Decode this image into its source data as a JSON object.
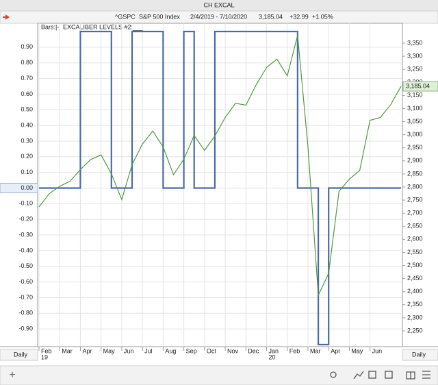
{
  "window": {
    "title": "CH EXCAL"
  },
  "header": {
    "symbol": "^GSPC",
    "name": "S&P 500 Index",
    "range": "2/4/2019 - 7/10/2020",
    "last": "3,185.04",
    "change": "+32.99",
    "change_pct": "+1.05%"
  },
  "footer": {
    "left": "Daily",
    "right": "Daily"
  },
  "chart_data": {
    "type": "line",
    "legend": [
      "Bars:|-",
      "EXCALIBER LEVELS #2:___"
    ],
    "categories": [
      "Feb",
      null,
      "Mar",
      null,
      "Apr",
      null,
      "May",
      null,
      "Jun",
      null,
      "Jul",
      null,
      "Aug",
      null,
      "Sep",
      null,
      "Oct",
      null,
      "Nov",
      null,
      "Dec",
      null,
      "Jan",
      null,
      "Feb",
      null,
      "Mar",
      null,
      "Apr",
      null,
      "May",
      null,
      "Jun",
      null,
      null,
      null
    ],
    "year_row": [
      "19",
      null,
      null,
      null,
      null,
      null,
      null,
      null,
      null,
      null,
      null,
      null,
      null,
      null,
      null,
      null,
      null,
      null,
      null,
      null,
      null,
      null,
      "20",
      null,
      null,
      null,
      null,
      null,
      null,
      null,
      null,
      null,
      null,
      null,
      null,
      null
    ],
    "series": [
      {
        "name": "EXCALIBER LEVELS #2",
        "color": "#4a6aa8",
        "step": true,
        "values": [
          0,
          0,
          0,
          0,
          1,
          1,
          1,
          0,
          0,
          1,
          1,
          1,
          0,
          0,
          1,
          0,
          0,
          1,
          1,
          1,
          1,
          1,
          1,
          1,
          1,
          0,
          0,
          -1,
          0,
          0,
          0,
          0,
          0,
          0,
          0,
          0
        ]
      },
      {
        "name": "^GSPC",
        "color": "#4e9a3c",
        "axis": "y2",
        "values": [
          2724,
          2775,
          2803,
          2822,
          2867,
          2905,
          2923,
          2850,
          2752,
          2886,
          2964,
          3014,
          2953,
          2847,
          2906,
          2997,
          2940,
          2995,
          3066,
          3120,
          3113,
          3191,
          3257,
          3289,
          3225,
          3380,
          2954,
          2386,
          2470,
          2783,
          2830,
          2863,
          3055,
          3066,
          3115,
          3185.04
        ]
      }
    ],
    "ylim": [
      -1,
      1
    ],
    "yticks": [
      {
        "value": 0.9,
        "label": "0.90"
      },
      {
        "value": 0.8,
        "label": "0.80"
      },
      {
        "value": 0.7,
        "label": "0.70"
      },
      {
        "value": 0.6,
        "label": "0.60"
      },
      {
        "value": 0.5,
        "label": "0.50"
      },
      {
        "value": 0.4,
        "label": "0.40"
      },
      {
        "value": 0.3,
        "label": "0.30"
      },
      {
        "value": 0.2,
        "label": "0.20"
      },
      {
        "value": 0.1,
        "label": "0.10"
      },
      {
        "value": 0,
        "label": "0.00"
      },
      {
        "value": -0.1,
        "label": "-0.10"
      },
      {
        "value": -0.2,
        "label": "-0.20"
      },
      {
        "value": -0.3,
        "label": "-0.30"
      },
      {
        "value": -0.4,
        "label": "-0.40"
      },
      {
        "value": -0.5,
        "label": "-0.50"
      },
      {
        "value": -0.6,
        "label": "-0.60"
      },
      {
        "value": -0.7,
        "label": "-0.70"
      },
      {
        "value": -0.8,
        "label": "-0.80"
      },
      {
        "value": -0.9,
        "label": "-0.90"
      }
    ],
    "y2lim": [
      2197.6,
      3394.5
    ],
    "y2ticks": [
      {
        "value": 2250,
        "label": "2,250"
      },
      {
        "value": 2300,
        "label": "2,300"
      },
      {
        "value": 2350,
        "label": "2,350"
      },
      {
        "value": 2400,
        "label": "2,400"
      },
      {
        "value": 2450,
        "label": "2,450"
      },
      {
        "value": 2500,
        "label": "2,500"
      },
      {
        "value": 2550,
        "label": "2,550"
      },
      {
        "value": 2600,
        "label": "2,600"
      },
      {
        "value": 2650,
        "label": "2,650"
      },
      {
        "value": 2700,
        "label": "2,700"
      },
      {
        "value": 2750,
        "label": "2,750"
      },
      {
        "value": 2800,
        "label": "2,800"
      },
      {
        "value": 2850,
        "label": "2,850"
      },
      {
        "value": 2900,
        "label": "2,900"
      },
      {
        "value": 2950,
        "label": "2,950"
      },
      {
        "value": 3000,
        "label": "3,000"
      },
      {
        "value": 3050,
        "label": "3,050"
      },
      {
        "value": 3100,
        "label": "3,100"
      },
      {
        "value": 3150,
        "label": "3,150"
      },
      {
        "value": 3200,
        "label": "3,200"
      },
      {
        "value": 3250,
        "label": "3,250"
      },
      {
        "value": 3300,
        "label": "3,300"
      },
      {
        "value": 3350,
        "label": "3,350"
      }
    ],
    "grid": true
  }
}
